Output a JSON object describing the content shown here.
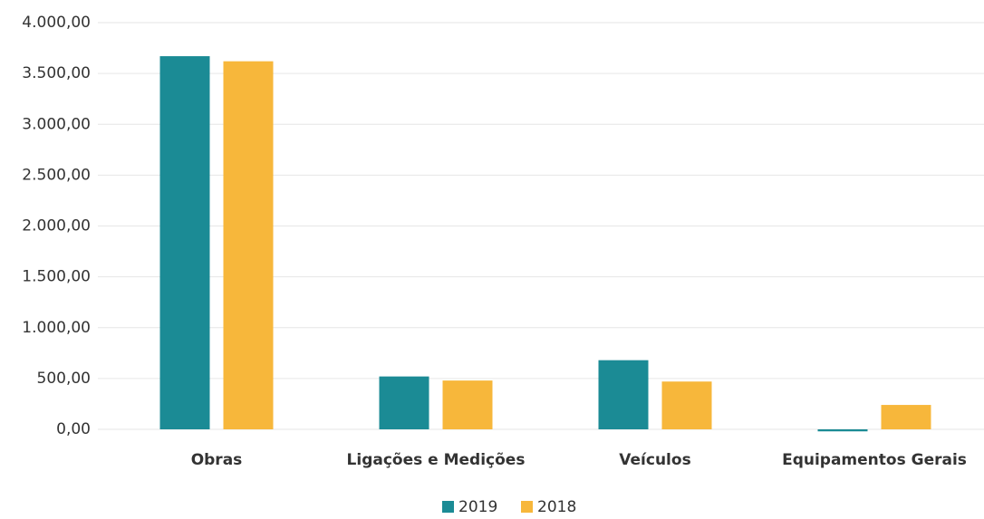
{
  "chart_data": {
    "type": "bar",
    "categories": [
      "Obras",
      "Ligações e Medições",
      "Veículos",
      "Equipamentos Gerais"
    ],
    "series": [
      {
        "name": "2019",
        "color": "#1b8b95",
        "values": [
          3670,
          520,
          680,
          -20
        ]
      },
      {
        "name": "2018",
        "color": "#f7b73b",
        "values": [
          3620,
          480,
          470,
          240
        ]
      }
    ],
    "ylim": [
      0,
      4000
    ],
    "yticks": [
      {
        "value": 0,
        "label": "0,00"
      },
      {
        "value": 500,
        "label": "500,00"
      },
      {
        "value": 1000,
        "label": "1.000,00"
      },
      {
        "value": 1500,
        "label": "1.500,00"
      },
      {
        "value": 2000,
        "label": "2.000,00"
      },
      {
        "value": 2500,
        "label": "2.500,00"
      },
      {
        "value": 3000,
        "label": "3.000,00"
      },
      {
        "value": 3500,
        "label": "3.500,00"
      },
      {
        "value": 4000,
        "label": "4.000,00"
      }
    ],
    "grid": true,
    "legend": "bottom"
  }
}
